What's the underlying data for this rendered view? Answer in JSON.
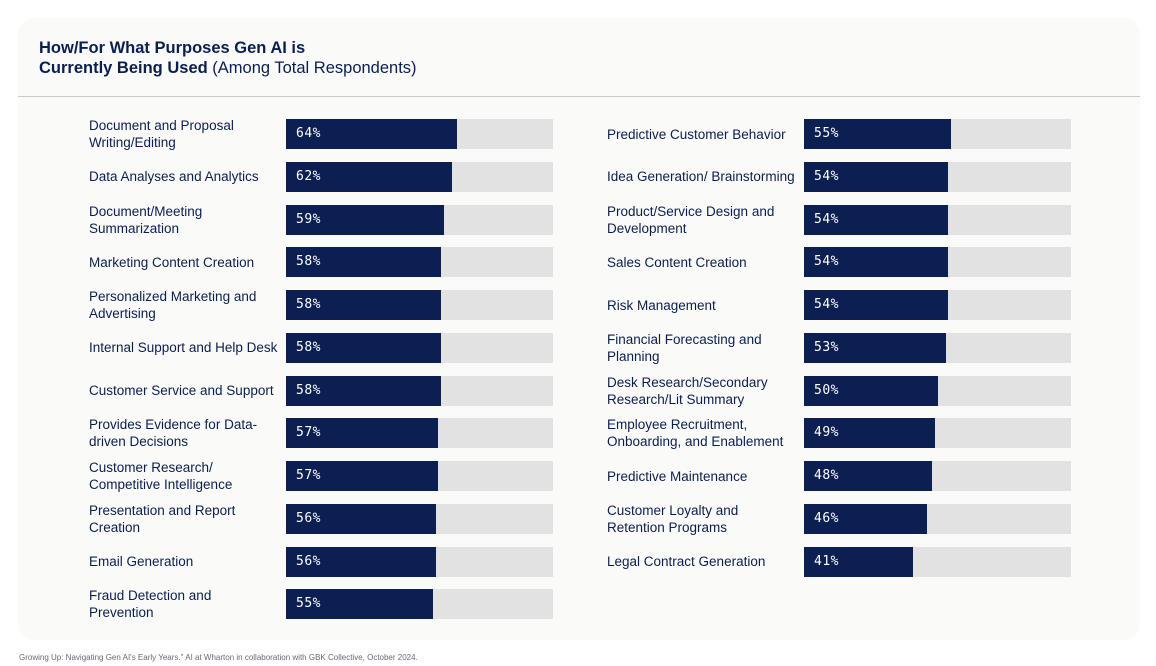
{
  "title_bold_line1": "How/For What Purposes Gen AI is",
  "title_bold_line2": "Currently Being Used",
  "title_rest": "(Among Total Respondents)",
  "source": "Growing Up: Navigating Gen AI's Early Years.\" AI at Wharton in collaboration with GBK Collective, October 2024.",
  "colors": {
    "bar": "#0c1f52",
    "track": "#e2e2e2",
    "text": "#0b1f4f"
  },
  "chart_data": {
    "type": "bar",
    "orientation": "horizontal",
    "ylim": [
      0,
      100
    ],
    "columns": [
      {
        "items": [
          {
            "label": "Document and Proposal Writing/Editing",
            "value": 64,
            "display": "64%"
          },
          {
            "label": "Data Analyses and Analytics",
            "value": 62,
            "display": "62%"
          },
          {
            "label": "Document/Meeting Summarization",
            "value": 59,
            "display": "59%"
          },
          {
            "label": "Marketing Content Creation",
            "value": 58,
            "display": "58%"
          },
          {
            "label": "Personalized Marketing and Advertising",
            "value": 58,
            "display": "58%"
          },
          {
            "label": "Internal Support and Help Desk",
            "value": 58,
            "display": "58%"
          },
          {
            "label": "Customer Service and Support",
            "value": 58,
            "display": "58%"
          },
          {
            "label": "Provides Evidence for Data-driven Decisions",
            "value": 57,
            "display": "57%"
          },
          {
            "label": "Customer Research/ Competitive Intelligence",
            "value": 57,
            "display": "57%"
          },
          {
            "label": "Presentation and Report Creation",
            "value": 56,
            "display": "56%"
          },
          {
            "label": "Email Generation",
            "value": 56,
            "display": "56%"
          },
          {
            "label": "Fraud Detection and Prevention",
            "value": 55,
            "display": "55%"
          }
        ]
      },
      {
        "items": [
          {
            "label": "Predictive Customer Behavior",
            "value": 55,
            "display": "55%"
          },
          {
            "label": "Idea Generation/ Brainstorming",
            "value": 54,
            "display": "54%"
          },
          {
            "label": "Product/Service Design and Development",
            "value": 54,
            "display": "54%"
          },
          {
            "label": "Sales Content Creation",
            "value": 54,
            "display": "54%"
          },
          {
            "label": "Risk Management",
            "value": 54,
            "display": "54%"
          },
          {
            "label": "Financial Forecasting and Planning",
            "value": 53,
            "display": "53%"
          },
          {
            "label": "Desk Research/Secondary Research/Lit Summary",
            "value": 50,
            "display": "50%"
          },
          {
            "label": "Employee Recruitment, Onboarding, and Enablement",
            "value": 49,
            "display": "49%"
          },
          {
            "label": "Predictive Maintenance",
            "value": 48,
            "display": "48%"
          },
          {
            "label": "Customer Loyalty and Retention Programs",
            "value": 46,
            "display": "46%"
          },
          {
            "label": "Legal Contract Generation",
            "value": 41,
            "display": "41%"
          }
        ]
      }
    ]
  }
}
